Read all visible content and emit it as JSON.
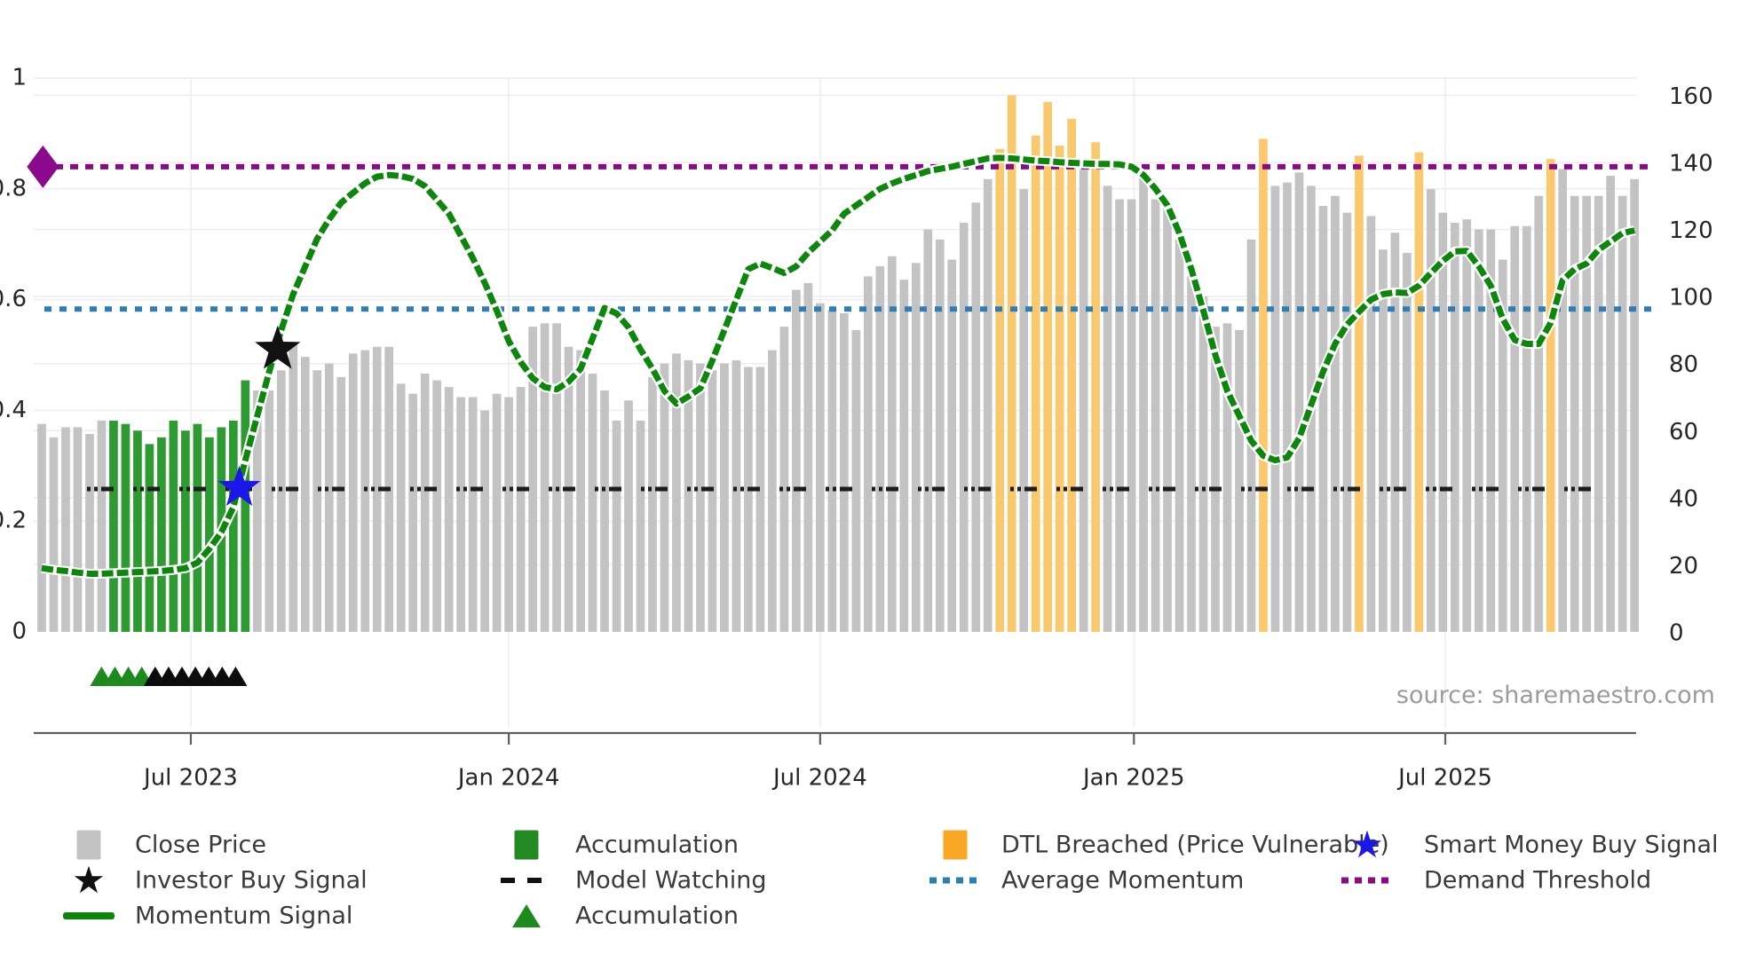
{
  "source": "source: sharemaestro.com",
  "colors": {
    "bar_gray": "#c3c3c3",
    "bar_green": "#2e9b32",
    "bar_orange": "#fbc96d",
    "momentum_green": "#0c870c",
    "demand_purple": "#8b0a8b",
    "avg_momentum_blue": "#2e7db5",
    "model_watching_black": "#1c1c1c",
    "smart_money_blue": "#1a17e8",
    "investor_black": "#111111",
    "gridline": "#ececf1",
    "axis_line": "#5f5f5f",
    "tick_text": "#262626",
    "background": "#ffffff"
  },
  "chart_data": {
    "type": "bar+line combo (weekly close price bars with momentum overlay)",
    "title": "",
    "xlabel": "",
    "ylabel_left": "",
    "ylabel_right": "",
    "x_tick_labels": [
      "Jul 2023",
      "Jan 2024",
      "Jul 2024",
      "Jan 2025",
      "Jul 2025"
    ],
    "x_tick_week_index": [
      12.45,
      39.0,
      65.0,
      91.2,
      117.2
    ],
    "y_left_axis": {
      "min": 0,
      "max": 1,
      "ticks": [
        "0",
        "0.2",
        "0.4",
        "0.6",
        "0.8",
        "1"
      ],
      "tick_values": [
        0,
        0.2,
        0.4,
        0.6,
        0.8,
        1
      ]
    },
    "y_right_axis": {
      "min": 0,
      "max": 160,
      "ticks": [
        "0",
        "20",
        "40",
        "60",
        "80",
        "100",
        "120",
        "140",
        "160"
      ],
      "tick_values": [
        0,
        20,
        40,
        60,
        80,
        100,
        120,
        140,
        160
      ]
    },
    "close_price": {
      "name": "Close Price",
      "axis": "right",
      "values": [
        62,
        58,
        61,
        61,
        59,
        63,
        63,
        62,
        60,
        56,
        58,
        63,
        60,
        62,
        58,
        61,
        63,
        75,
        72,
        72,
        78,
        86,
        82,
        78,
        80,
        76,
        83,
        84,
        85,
        85,
        74,
        71,
        77,
        75,
        73,
        70,
        70,
        66,
        71,
        70,
        73,
        91,
        92,
        92,
        85,
        84,
        77,
        72,
        63,
        69,
        63,
        76,
        80,
        83,
        81,
        80,
        78,
        80,
        81,
        79,
        79,
        84,
        91,
        102,
        104,
        98,
        96,
        95,
        90,
        106,
        109,
        112,
        105,
        110,
        120,
        117,
        111,
        122,
        128,
        135,
        144,
        160,
        132,
        148,
        158,
        145,
        153,
        138,
        146,
        133,
        129,
        129,
        136,
        129,
        127,
        117,
        106,
        100,
        91,
        92,
        90,
        117,
        147,
        133,
        134,
        137,
        133,
        127,
        130,
        125,
        142,
        124,
        114,
        119,
        113,
        143,
        132,
        125,
        122,
        123,
        120,
        120,
        111,
        121,
        121,
        130,
        141,
        138,
        130,
        130,
        130,
        136,
        130,
        135
      ]
    },
    "accumulation_bar_indices": [
      6,
      7,
      8,
      9,
      10,
      11,
      12,
      13,
      14,
      15,
      16,
      17
    ],
    "dtl_breached_bar_indices": [
      80,
      81,
      83,
      84,
      85,
      86,
      88,
      102,
      110,
      115,
      126
    ],
    "momentum_signal": {
      "name": "Momentum Signal",
      "axis": "left",
      "values": [
        0.115,
        0.112,
        0.11,
        0.107,
        0.105,
        0.105,
        0.106,
        0.107,
        0.108,
        0.109,
        0.11,
        0.112,
        0.115,
        0.125,
        0.15,
        0.18,
        0.225,
        0.31,
        0.39,
        0.47,
        0.545,
        0.61,
        0.66,
        0.71,
        0.745,
        0.775,
        0.793,
        0.81,
        0.822,
        0.825,
        0.823,
        0.818,
        0.805,
        0.78,
        0.755,
        0.715,
        0.675,
        0.63,
        0.58,
        0.525,
        0.487,
        0.458,
        0.442,
        0.438,
        0.452,
        0.475,
        0.53,
        0.585,
        0.575,
        0.55,
        0.51,
        0.475,
        0.435,
        0.412,
        0.425,
        0.44,
        0.49,
        0.545,
        0.6,
        0.655,
        0.665,
        0.657,
        0.648,
        0.66,
        0.685,
        0.705,
        0.725,
        0.755,
        0.77,
        0.785,
        0.8,
        0.81,
        0.818,
        0.825,
        0.832,
        0.836,
        0.84,
        0.845,
        0.85,
        0.855,
        0.856,
        0.855,
        0.853,
        0.851,
        0.85,
        0.848,
        0.847,
        0.846,
        0.845,
        0.845,
        0.844,
        0.84,
        0.825,
        0.8,
        0.77,
        0.72,
        0.655,
        0.58,
        0.5,
        0.435,
        0.39,
        0.345,
        0.318,
        0.31,
        0.315,
        0.35,
        0.41,
        0.47,
        0.52,
        0.555,
        0.578,
        0.6,
        0.61,
        0.613,
        0.612,
        0.625,
        0.648,
        0.67,
        0.687,
        0.688,
        0.66,
        0.625,
        0.565,
        0.527,
        0.52,
        0.52,
        0.558,
        0.635,
        0.655,
        0.665,
        0.69,
        0.705,
        0.72,
        0.725
      ]
    },
    "reference_lines": {
      "demand_threshold": {
        "name": "Demand Threshold",
        "axis": "left",
        "value": 0.84
      },
      "average_momentum": {
        "name": "Average Momentum",
        "axis": "left",
        "value": 0.583
      },
      "model_watching": {
        "name": "Model Watching",
        "axis": "left",
        "value": 0.258
      }
    },
    "markers": {
      "investor_buy_signal": {
        "name": "Investor Buy Signal",
        "week_index": 19.7,
        "momentum_value": 0.51
      },
      "smart_money_buy_signal": {
        "name": "Smart Money Buy Signal",
        "week_index": 16.5,
        "momentum_value": 0.26
      },
      "demand_threshold_start_diamond": {
        "week_index": 0.1,
        "value": 0.84
      },
      "accumulation_triangle_row": {
        "green_count": 4,
        "black_count": 7,
        "start_week_index": 4.7
      }
    },
    "legend_position": "bottom",
    "grid": "on"
  },
  "legend": {
    "entries": [
      {
        "swatch": "square",
        "color": "#c3c3c3",
        "label": "Close Price",
        "col": 0,
        "row": 0
      },
      {
        "swatch": "star",
        "color": "#111111",
        "label": "Investor Buy Signal",
        "col": 0,
        "row": 1
      },
      {
        "swatch": "line",
        "color": "#0c870c",
        "label": "Momentum Signal",
        "col": 0,
        "row": 2
      },
      {
        "swatch": "square",
        "color": "#238a23",
        "label": "Accumulation",
        "col": 1,
        "row": 0
      },
      {
        "swatch": "dashed",
        "color": "#111111",
        "label": "Model Watching",
        "col": 1,
        "row": 1
      },
      {
        "swatch": "triangle",
        "color": "#1d8a1d",
        "label": "Accumulation",
        "col": 1,
        "row": 2
      },
      {
        "swatch": "square",
        "color": "#f9a825",
        "label": "DTL Breached (Price Vulnerable)",
        "col": 2,
        "row": 0
      },
      {
        "swatch": "dotted",
        "color": "#2e7db5",
        "label": "Average Momentum",
        "col": 2,
        "row": 1
      },
      {
        "swatch": "star",
        "color": "#1a17e8",
        "label": "Smart Money Buy Signal",
        "col": 3,
        "row": 0
      },
      {
        "swatch": "dotted",
        "color": "#8b0a8b",
        "label": "Demand Threshold",
        "col": 3,
        "row": 1
      }
    ]
  }
}
